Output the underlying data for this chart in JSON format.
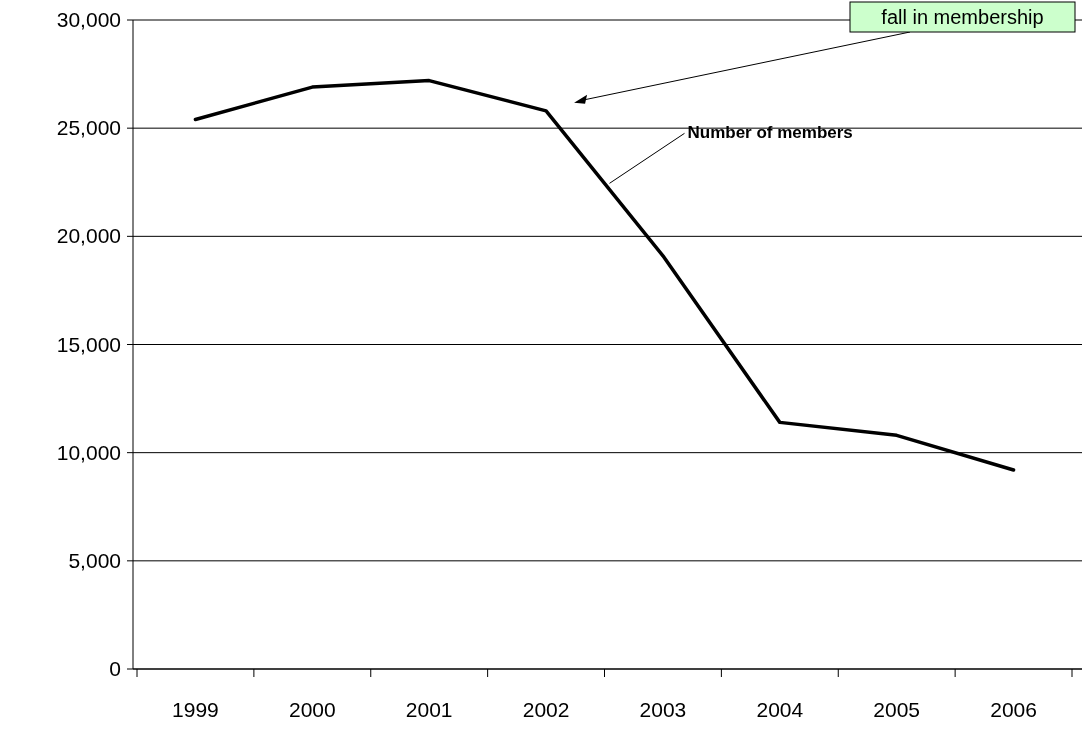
{
  "chart_data": {
    "type": "line",
    "categories": [
      "1999",
      "2000",
      "2001",
      "2002",
      "2003",
      "2004",
      "2005",
      "2006"
    ],
    "series": [
      {
        "name": "Number of members",
        "color": "#000000",
        "values": [
          25400,
          26900,
          27200,
          25800,
          19100,
          11400,
          10800,
          9200
        ]
      }
    ],
    "ylim": [
      0,
      30000
    ],
    "yticks": [
      {
        "value": 0,
        "label": "0"
      },
      {
        "value": 5000,
        "label": "5,000"
      },
      {
        "value": 10000,
        "label": "10,000"
      },
      {
        "value": 15000,
        "label": "15,000"
      },
      {
        "value": 20000,
        "label": "20,000"
      },
      {
        "value": 25000,
        "label": "25,000"
      },
      {
        "value": 30000,
        "label": "30,000"
      }
    ],
    "grid": "y",
    "marker": "none",
    "line_style": "solid",
    "annotations": [
      "fall in membership"
    ]
  }
}
